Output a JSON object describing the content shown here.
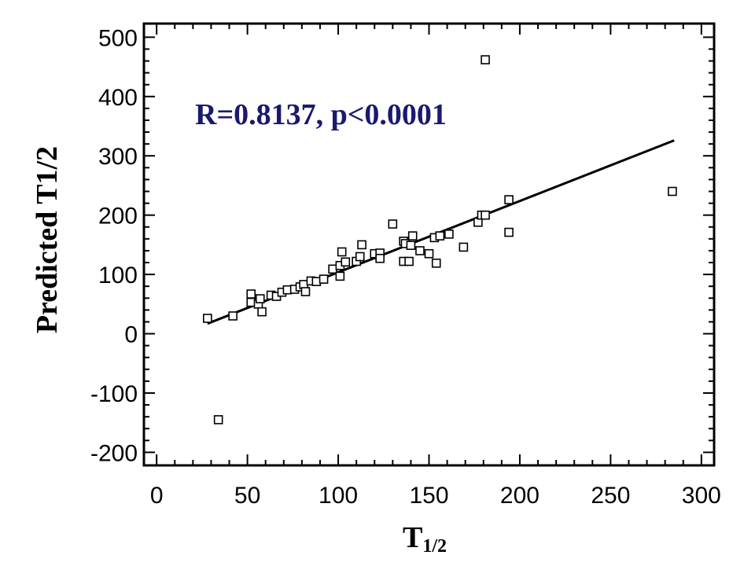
{
  "chart_data": {
    "type": "scatter",
    "xlabel": "T",
    "xlabel_sub": "1/2",
    "ylabel": "Predicted T1/2",
    "xlim": [
      -7,
      307
    ],
    "ylim": [
      -222,
      523
    ],
    "xticks": [
      0,
      50,
      100,
      150,
      200,
      250,
      300
    ],
    "xtick_labels": [
      "0",
      "50",
      "100",
      "150",
      "200",
      "250",
      "300"
    ],
    "yticks": [
      -200,
      -100,
      0,
      100,
      200,
      300,
      400,
      500
    ],
    "ytick_labels": [
      "-200",
      "-100",
      "0",
      "100",
      "200",
      "300",
      "400",
      "500"
    ],
    "annotation": "R=0.8137,  p<0.0001",
    "annotation_color": "#1a1a6e",
    "marker": "open-square",
    "grid": false,
    "legend": "none",
    "fit_line": {
      "x": [
        28,
        285
      ],
      "y": [
        17,
        326
      ]
    },
    "points": [
      {
        "x": 28,
        "y": 26
      },
      {
        "x": 34,
        "y": -145
      },
      {
        "x": 42,
        "y": 30
      },
      {
        "x": 52,
        "y": 67
      },
      {
        "x": 52,
        "y": 53
      },
      {
        "x": 56,
        "y": 50
      },
      {
        "x": 57,
        "y": 59
      },
      {
        "x": 58,
        "y": 37
      },
      {
        "x": 63,
        "y": 65
      },
      {
        "x": 66,
        "y": 63
      },
      {
        "x": 69,
        "y": 70
      },
      {
        "x": 72,
        "y": 74
      },
      {
        "x": 76,
        "y": 75
      },
      {
        "x": 79,
        "y": 79
      },
      {
        "x": 81,
        "y": 83
      },
      {
        "x": 82,
        "y": 71
      },
      {
        "x": 85,
        "y": 89
      },
      {
        "x": 88,
        "y": 88
      },
      {
        "x": 92,
        "y": 92
      },
      {
        "x": 97,
        "y": 109
      },
      {
        "x": 101,
        "y": 115
      },
      {
        "x": 101,
        "y": 97
      },
      {
        "x": 102,
        "y": 138
      },
      {
        "x": 104,
        "y": 121
      },
      {
        "x": 110,
        "y": 122
      },
      {
        "x": 112,
        "y": 130
      },
      {
        "x": 113,
        "y": 150
      },
      {
        "x": 120,
        "y": 135
      },
      {
        "x": 123,
        "y": 136
      },
      {
        "x": 123,
        "y": 127
      },
      {
        "x": 130,
        "y": 185
      },
      {
        "x": 136,
        "y": 156
      },
      {
        "x": 137,
        "y": 152
      },
      {
        "x": 136,
        "y": 122
      },
      {
        "x": 139,
        "y": 122
      },
      {
        "x": 140,
        "y": 149
      },
      {
        "x": 141,
        "y": 165
      },
      {
        "x": 145,
        "y": 140
      },
      {
        "x": 150,
        "y": 135
      },
      {
        "x": 153,
        "y": 162
      },
      {
        "x": 156,
        "y": 165
      },
      {
        "x": 154,
        "y": 119
      },
      {
        "x": 161,
        "y": 168
      },
      {
        "x": 169,
        "y": 146
      },
      {
        "x": 177,
        "y": 188
      },
      {
        "x": 179,
        "y": 200
      },
      {
        "x": 181,
        "y": 200
      },
      {
        "x": 181,
        "y": 462
      },
      {
        "x": 194,
        "y": 226
      },
      {
        "x": 194,
        "y": 171
      },
      {
        "x": 284,
        "y": 240
      }
    ]
  }
}
